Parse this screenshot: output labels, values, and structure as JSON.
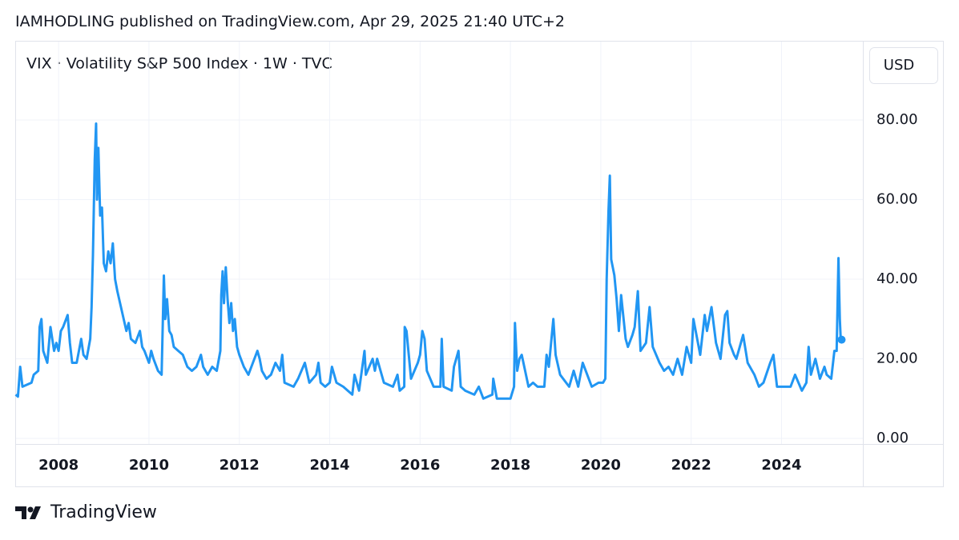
{
  "header": {
    "published": "IAMHODLING published on TradingView.com, Apr 29, 2025 21:40 UTC+2"
  },
  "chart_data": {
    "type": "line",
    "title": "VIX · Volatility S&P 500 Index · 1W · TVC",
    "y_axis_unit": "USD",
    "color": "#2196f3",
    "grid": true,
    "xlim": [
      2007.04,
      2025.8
    ],
    "xticks": [
      2008,
      2010,
      2012,
      2014,
      2016,
      2018,
      2020,
      2022,
      2024
    ],
    "ylim": [
      -1.4,
      99.7
    ],
    "yticks": [
      {
        "value": 0,
        "label": "0.00"
      },
      {
        "value": 20,
        "label": "20.00"
      },
      {
        "value": 40,
        "label": "40.00"
      },
      {
        "value": 60,
        "label": "60.00"
      },
      {
        "value": 80,
        "label": "80.00"
      }
    ],
    "x": [
      2007.05,
      2007.1,
      2007.15,
      2007.2,
      2007.3,
      2007.4,
      2007.45,
      2007.55,
      2007.58,
      2007.62,
      2007.66,
      2007.75,
      2007.82,
      2007.9,
      2007.95,
      2008.0,
      2008.05,
      2008.1,
      2008.2,
      2008.25,
      2008.3,
      2008.4,
      2008.45,
      2008.5,
      2008.55,
      2008.62,
      2008.7,
      2008.73,
      2008.76,
      2008.8,
      2008.83,
      2008.85,
      2008.88,
      2008.92,
      2008.96,
      2009.0,
      2009.05,
      2009.1,
      2009.15,
      2009.2,
      2009.25,
      2009.3,
      2009.4,
      2009.5,
      2009.55,
      2009.6,
      2009.7,
      2009.8,
      2009.85,
      2009.9,
      2010.0,
      2010.05,
      2010.1,
      2010.2,
      2010.28,
      2010.33,
      2010.36,
      2010.4,
      2010.45,
      2010.5,
      2010.55,
      2010.65,
      2010.75,
      2010.85,
      2010.95,
      2011.05,
      2011.15,
      2011.2,
      2011.3,
      2011.4,
      2011.5,
      2011.58,
      2011.6,
      2011.63,
      2011.66,
      2011.7,
      2011.74,
      2011.78,
      2011.82,
      2011.86,
      2011.9,
      2011.95,
      2012.0,
      2012.1,
      2012.2,
      2012.3,
      2012.4,
      2012.45,
      2012.5,
      2012.6,
      2012.7,
      2012.8,
      2012.9,
      2012.95,
      2013.0,
      2013.2,
      2013.3,
      2013.45,
      2013.55,
      2013.7,
      2013.75,
      2013.8,
      2013.9,
      2014.0,
      2014.05,
      2014.15,
      2014.3,
      2014.5,
      2014.55,
      2014.65,
      2014.77,
      2014.8,
      2014.95,
      2015.0,
      2015.05,
      2015.2,
      2015.4,
      2015.5,
      2015.55,
      2015.65,
      2015.66,
      2015.7,
      2015.75,
      2015.8,
      2015.95,
      2016.0,
      2016.05,
      2016.1,
      2016.15,
      2016.3,
      2016.45,
      2016.48,
      2016.52,
      2016.7,
      2016.75,
      2016.85,
      2016.9,
      2017.0,
      2017.2,
      2017.3,
      2017.4,
      2017.6,
      2017.62,
      2017.7,
      2017.9,
      2018.0,
      2018.08,
      2018.1,
      2018.15,
      2018.2,
      2018.25,
      2018.4,
      2018.5,
      2018.6,
      2018.75,
      2018.8,
      2018.85,
      2018.95,
      2019.0,
      2019.1,
      2019.3,
      2019.4,
      2019.5,
      2019.6,
      2019.7,
      2019.8,
      2019.95,
      2020.05,
      2020.1,
      2020.13,
      2020.17,
      2020.2,
      2020.23,
      2020.3,
      2020.35,
      2020.4,
      2020.45,
      2020.55,
      2020.6,
      2020.7,
      2020.75,
      2020.82,
      2020.88,
      2021.0,
      2021.08,
      2021.15,
      2021.3,
      2021.4,
      2021.5,
      2021.6,
      2021.7,
      2021.8,
      2021.9,
      2022.0,
      2022.05,
      2022.15,
      2022.2,
      2022.3,
      2022.35,
      2022.45,
      2022.55,
      2022.65,
      2022.75,
      2022.8,
      2022.85,
      2022.95,
      2023.0,
      2023.15,
      2023.25,
      2023.4,
      2023.5,
      2023.6,
      2023.75,
      2023.82,
      2023.9,
      2024.0,
      2024.2,
      2024.3,
      2024.45,
      2024.55,
      2024.6,
      2024.65,
      2024.75,
      2024.85,
      2024.95,
      2025.0,
      2025.1,
      2025.17,
      2025.22,
      2025.26,
      2025.29,
      2025.31,
      2025.33
    ],
    "values": [
      11,
      10.5,
      18,
      13,
      13.5,
      14,
      16,
      17,
      28,
      30,
      22,
      19,
      28,
      22,
      24,
      22,
      27,
      28,
      31,
      24,
      19,
      19,
      22,
      25,
      21,
      20,
      25,
      33,
      46,
      70,
      79.1,
      60,
      73,
      56,
      58,
      44,
      42,
      47,
      44,
      49,
      40,
      37,
      32,
      27,
      29,
      25,
      24,
      27,
      23,
      22,
      19,
      22,
      20,
      17,
      16,
      40.9,
      30,
      35,
      27,
      26,
      23,
      22,
      21,
      18,
      17,
      18,
      21,
      18,
      16,
      18,
      17,
      22,
      36,
      42,
      34,
      43,
      35,
      29,
      34,
      27,
      30,
      23,
      21,
      18,
      16,
      19,
      22,
      20,
      17,
      15,
      16,
      19,
      17,
      21,
      14,
      13,
      15,
      19,
      14,
      16,
      19,
      14,
      13,
      14,
      18,
      14,
      13,
      11,
      16,
      12,
      22,
      16,
      20,
      17,
      20,
      14,
      13,
      16,
      12,
      13,
      28,
      27,
      21,
      15,
      19,
      21,
      27,
      25,
      17,
      13,
      13,
      25,
      13,
      12,
      18,
      22,
      13,
      12,
      11,
      13,
      10,
      11,
      15,
      10,
      10,
      10,
      13,
      29,
      17,
      20,
      21,
      13,
      14,
      13,
      13,
      21,
      18,
      30,
      21,
      16,
      13,
      17,
      13,
      19,
      16,
      13,
      14,
      14,
      15,
      40,
      57,
      66,
      45,
      41,
      35,
      27,
      36,
      25,
      23,
      26,
      28,
      37,
      22,
      24,
      33,
      23,
      19,
      17,
      18,
      16,
      20,
      16,
      23,
      19,
      30,
      24,
      21,
      31,
      27,
      33,
      24,
      20,
      31,
      32,
      24,
      21,
      20,
      26,
      19,
      16,
      13,
      14,
      19,
      21,
      13,
      13,
      13,
      16,
      12,
      14,
      23,
      16,
      20,
      15,
      18,
      16,
      15,
      22,
      22,
      45.3,
      30,
      25,
      24.8
    ]
  },
  "footer": {
    "brand": "TradingView"
  }
}
